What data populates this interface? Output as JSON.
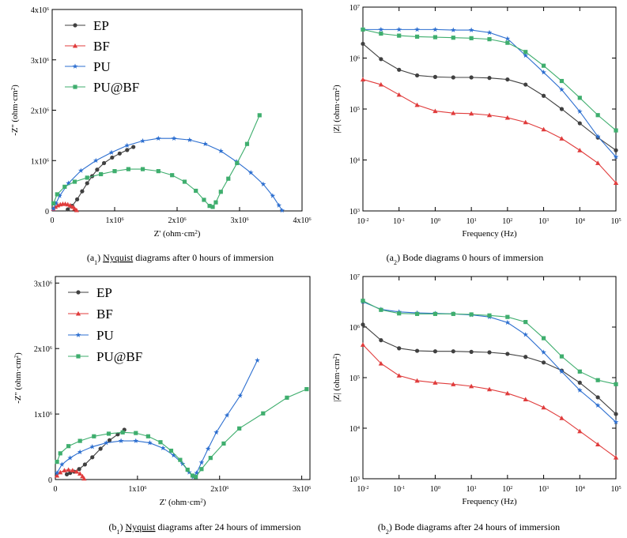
{
  "panels": [
    {
      "caption": {
        "prefix": "(a",
        "sub": "1",
        "link": "Nyquist",
        "rest": " diagrams after 0 hours of immersion"
      },
      "chart_data": {
        "type": "scatter",
        "kind": "nyquist",
        "xlabel": "Z' (ohm·cm²)",
        "ylabel": "-Z'' (ohm·cm²)",
        "xlim": [
          0,
          4000000
        ],
        "ylim": [
          0,
          4000000
        ],
        "xticks": [
          0,
          1000000,
          2000000,
          3000000,
          4000000
        ],
        "yticks": [
          0,
          1000000,
          2000000,
          3000000,
          4000000
        ],
        "xtick_labels": [
          "0",
          "1x10^6",
          "2x10^6",
          "3x10^6",
          "4x10^6"
        ],
        "ytick_labels": [
          "0",
          "1x10^6",
          "2x10^6",
          "3x10^6",
          "4x10^6"
        ],
        "legend_position": "top-left",
        "series": [
          {
            "name": "EP",
            "color": "#404040",
            "marker": "circle",
            "x": [
              250000,
              320000,
              400000,
              480000,
              560000,
              640000,
              720000,
              830000,
              960000,
              1080000,
              1200000,
              1300000
            ],
            "y": [
              30000,
              100000,
              230000,
              390000,
              550000,
              690000,
              820000,
              950000,
              1060000,
              1140000,
              1210000,
              1270000
            ]
          },
          {
            "name": "BF",
            "color": "#e03c3c",
            "marker": "triangle",
            "x": [
              20000,
              50000,
              90000,
              130000,
              170000,
              210000,
              250000,
              290000,
              330000,
              360000,
              390000
            ],
            "y": [
              40000,
              80000,
              110000,
              130000,
              140000,
              140000,
              130000,
              110000,
              80000,
              45000,
              15000
            ]
          },
          {
            "name": "PU",
            "color": "#2d6fd0",
            "marker": "star",
            "x": [
              20000,
              60000,
              120000,
              260000,
              460000,
              700000,
              950000,
              1200000,
              1450000,
              1700000,
              1950000,
              2200000,
              2450000,
              2700000,
              2950000,
              3180000,
              3380000,
              3530000,
              3630000,
              3680000
            ],
            "y": [
              40000,
              150000,
              300000,
              550000,
              800000,
              1000000,
              1160000,
              1300000,
              1390000,
              1440000,
              1440000,
              1410000,
              1330000,
              1190000,
              980000,
              760000,
              530000,
              300000,
              110000,
              10000
            ]
          },
          {
            "name": "PU@BF",
            "color": "#3fae6e",
            "marker": "square",
            "x": [
              20000,
              80000,
              200000,
              360000,
              560000,
              780000,
              1000000,
              1220000,
              1450000,
              1700000,
              1920000,
              2120000,
              2300000,
              2430000,
              2520000,
              2570000,
              2620000,
              2700000,
              2820000,
              2960000,
              3120000,
              3320000
            ],
            "y": [
              150000,
              330000,
              480000,
              580000,
              660000,
              730000,
              790000,
              830000,
              830000,
              790000,
              710000,
              580000,
              400000,
              220000,
              100000,
              80000,
              170000,
              380000,
              640000,
              950000,
              1330000,
              1900000
            ]
          }
        ]
      }
    },
    {
      "caption": {
        "prefix": "(a",
        "sub": "2",
        "link": "",
        "rest": " Bode diagrams 0 hours of immersion"
      },
      "chart_data": {
        "type": "line",
        "kind": "bode",
        "xscale": "log",
        "yscale": "log",
        "xlabel": "Frequency (Hz)",
        "ylabel": "|Z| (ohm·cm²)",
        "xlim": [
          0.01,
          100000
        ],
        "ylim": [
          1000,
          10000000
        ],
        "xtick_exponents": [
          -2,
          -1,
          0,
          1,
          2,
          3,
          4,
          5
        ],
        "ytick_exponents": [
          3,
          4,
          5,
          6,
          7
        ],
        "series": [
          {
            "name": "EP",
            "color": "#404040",
            "marker": "circle",
            "log_f": [
              -2,
              -1.5,
              -1,
              -0.5,
              0,
              0.5,
              1,
              1.5,
              2,
              2.5,
              3,
              3.5,
              4,
              4.5,
              5
            ],
            "log_z": [
              6.28,
              5.98,
              5.77,
              5.66,
              5.63,
              5.62,
              5.62,
              5.61,
              5.58,
              5.48,
              5.26,
              5.0,
              4.72,
              4.44,
              4.19
            ]
          },
          {
            "name": "BF",
            "color": "#e03c3c",
            "marker": "triangle",
            "log_f": [
              -2,
              -1.5,
              -1,
              -0.5,
              0,
              0.5,
              1,
              1.5,
              2,
              2.5,
              3,
              3.5,
              4,
              4.5,
              5
            ],
            "log_z": [
              5.58,
              5.48,
              5.28,
              5.08,
              4.96,
              4.92,
              4.91,
              4.88,
              4.83,
              4.74,
              4.6,
              4.42,
              4.19,
              3.94,
              3.55
            ]
          },
          {
            "name": "PU",
            "color": "#2d6fd0",
            "marker": "star",
            "log_f": [
              -2,
              -1.5,
              -1,
              -0.5,
              0,
              0.5,
              1,
              1.5,
              2,
              2.5,
              3,
              3.5,
              4,
              4.5,
              5
            ],
            "log_z": [
              6.56,
              6.56,
              6.56,
              6.56,
              6.56,
              6.55,
              6.55,
              6.5,
              6.38,
              6.05,
              5.72,
              5.38,
              4.95,
              4.46,
              4.06
            ]
          },
          {
            "name": "PU@BF",
            "color": "#3fae6e",
            "marker": "square",
            "log_f": [
              -2,
              -1.5,
              -1,
              -0.5,
              0,
              0.5,
              1,
              1.5,
              2,
              2.5,
              3,
              3.5,
              4,
              4.5,
              5
            ],
            "log_z": [
              6.56,
              6.48,
              6.44,
              6.42,
              6.41,
              6.4,
              6.39,
              6.37,
              6.3,
              6.12,
              5.85,
              5.55,
              5.22,
              4.88,
              4.58
            ]
          }
        ]
      }
    },
    {
      "caption": {
        "prefix": "(b",
        "sub": "1",
        "link": "Nyquist",
        "rest": " diagrams after 24 hours of immersion"
      },
      "chart_data": {
        "type": "scatter",
        "kind": "nyquist",
        "xlabel": "Z' (ohm·cm²)",
        "ylabel": "-Z'' (ohm·cm²)",
        "xlim": [
          0,
          3100000
        ],
        "ylim": [
          0,
          3100000
        ],
        "xticks": [
          0,
          1000000,
          2000000,
          3000000
        ],
        "yticks": [
          0,
          1000000,
          2000000,
          3000000
        ],
        "xtick_labels": [
          "0",
          "1x10^6",
          "2x10^6",
          "3x10^6"
        ],
        "ytick_labels": [
          "0",
          "1x10^6",
          "2x10^6",
          "3x10^6"
        ],
        "legend_position": "top-left",
        "series": [
          {
            "name": "EP",
            "color": "#404040",
            "marker": "circle",
            "x": [
              140000,
              180000,
              230000,
              290000,
              360000,
              450000,
              550000,
              660000,
              760000,
              840000
            ],
            "y": [
              80000,
              100000,
              120000,
              160000,
              230000,
              340000,
              470000,
              600000,
              690000,
              760000
            ]
          },
          {
            "name": "BF",
            "color": "#e03c3c",
            "marker": "triangle",
            "x": [
              20000,
              60000,
              110000,
              160000,
              210000,
              260000,
              300000,
              330000,
              350000
            ],
            "y": [
              60000,
              110000,
              140000,
              150000,
              140000,
              120000,
              90000,
              50000,
              15000
            ]
          },
          {
            "name": "PU",
            "color": "#2d6fd0",
            "marker": "star",
            "x": [
              20000,
              80000,
              180000,
              300000,
              450000,
              620000,
              800000,
              980000,
              1150000,
              1310000,
              1440000,
              1550000,
              1630000,
              1680000,
              1720000,
              1780000,
              1860000,
              1960000,
              2090000,
              2250000,
              2460000
            ],
            "y": [
              100000,
              230000,
              330000,
              420000,
              500000,
              560000,
              590000,
              590000,
              560000,
              480000,
              370000,
              240000,
              110000,
              40000,
              100000,
              260000,
              470000,
              720000,
              980000,
              1280000,
              1820000
            ]
          },
          {
            "name": "PU@BF",
            "color": "#3fae6e",
            "marker": "square",
            "x": [
              20000,
              60000,
              160000,
              300000,
              470000,
              650000,
              820000,
              980000,
              1130000,
              1280000,
              1410000,
              1520000,
              1610000,
              1670000,
              1710000,
              1780000,
              1890000,
              2050000,
              2240000,
              2530000,
              2820000,
              3060000
            ],
            "y": [
              270000,
              400000,
              510000,
              590000,
              660000,
              700000,
              720000,
              710000,
              660000,
              570000,
              440000,
              300000,
              150000,
              60000,
              40000,
              160000,
              330000,
              550000,
              780000,
              1010000,
              1250000,
              1380000
            ]
          }
        ]
      }
    },
    {
      "caption": {
        "prefix": "(b",
        "sub": "2",
        "link": "",
        "rest": " Bode diagrams after 24 hours of immersion"
      },
      "chart_data": {
        "type": "line",
        "kind": "bode",
        "xscale": "log",
        "yscale": "log",
        "xlabel": "Frequency (Hz)",
        "ylabel": "|Z| (ohm·cm²)",
        "xlim": [
          0.01,
          100000
        ],
        "ylim": [
          1000,
          10000000
        ],
        "xtick_exponents": [
          -2,
          -1,
          0,
          1,
          2,
          3,
          4,
          5
        ],
        "ytick_exponents": [
          3,
          4,
          5,
          6,
          7
        ],
        "series": [
          {
            "name": "EP",
            "color": "#404040",
            "marker": "circle",
            "log_f": [
              -2,
              -1.5,
              -1,
              -0.5,
              0,
              0.5,
              1,
              1.5,
              2,
              2.5,
              3,
              3.5,
              4,
              4.5,
              5
            ],
            "log_z": [
              6.05,
              5.74,
              5.58,
              5.53,
              5.52,
              5.52,
              5.51,
              5.5,
              5.47,
              5.41,
              5.3,
              5.14,
              4.9,
              4.61,
              4.28
            ]
          },
          {
            "name": "BF",
            "color": "#e03c3c",
            "marker": "triangle",
            "log_f": [
              -2,
              -1.5,
              -1,
              -0.5,
              0,
              0.5,
              1,
              1.5,
              2,
              2.5,
              3,
              3.5,
              4,
              4.5,
              5
            ],
            "log_z": [
              5.65,
              5.28,
              5.04,
              4.94,
              4.9,
              4.87,
              4.83,
              4.77,
              4.69,
              4.57,
              4.41,
              4.2,
              3.94,
              3.68,
              3.42
            ]
          },
          {
            "name": "PU",
            "color": "#2d6fd0",
            "marker": "star",
            "log_f": [
              -2,
              -1.5,
              -1,
              -0.5,
              0,
              0.5,
              1,
              1.5,
              2,
              2.5,
              3,
              3.5,
              4,
              4.5,
              5
            ],
            "log_z": [
              6.5,
              6.35,
              6.3,
              6.28,
              6.27,
              6.26,
              6.24,
              6.2,
              6.09,
              5.85,
              5.5,
              5.12,
              4.75,
              4.45,
              4.12
            ]
          },
          {
            "name": "PU@BF",
            "color": "#3fae6e",
            "marker": "square",
            "log_f": [
              -2,
              -1.5,
              -1,
              -0.5,
              0,
              0.5,
              1,
              1.5,
              2,
              2.5,
              3,
              3.5,
              4,
              4.5,
              5
            ],
            "log_z": [
              6.52,
              6.34,
              6.27,
              6.26,
              6.26,
              6.26,
              6.25,
              6.23,
              6.2,
              6.1,
              5.78,
              5.42,
              5.12,
              4.95,
              4.87
            ]
          }
        ]
      }
    }
  ]
}
